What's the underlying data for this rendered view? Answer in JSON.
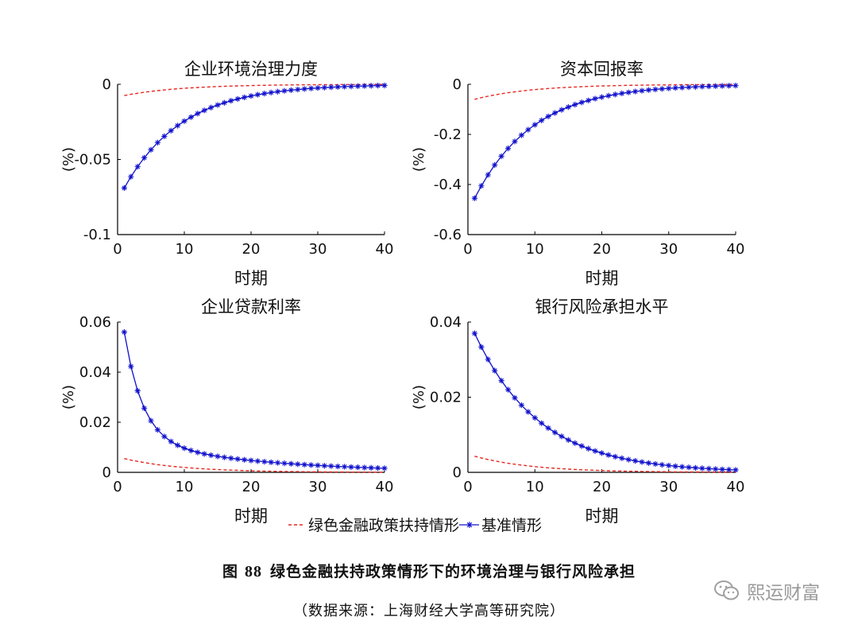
{
  "chart_data": [
    {
      "type": "line",
      "title": "企业环境治理力度",
      "xlabel": "时期",
      "ylabel": "(%)",
      "xlim": [
        0,
        40
      ],
      "ylim": [
        -0.1,
        0
      ],
      "xticks": [
        "0",
        "10",
        "20",
        "30",
        "40"
      ],
      "yticks": [
        "-0.1",
        "-0.05",
        "0"
      ],
      "ytick_values": [
        -0.1,
        -0.05,
        0
      ],
      "series": [
        {
          "name": "绿色金融政策扶持情形",
          "style": "red-dashed",
          "start": -0.0075,
          "decay": 0.115
        },
        {
          "name": "基准情形",
          "style": "blue-star",
          "start": -0.069,
          "decay": 0.115
        }
      ]
    },
    {
      "type": "line",
      "title": "资本回报率",
      "xlabel": "时期",
      "ylabel": "(%)",
      "xlim": [
        0,
        40
      ],
      "ylim": [
        -0.6,
        0
      ],
      "xticks": [
        "0",
        "10",
        "20",
        "30",
        "40"
      ],
      "yticks": [
        "-0.6",
        "-0.4",
        "-0.2",
        "0"
      ],
      "ytick_values": [
        -0.6,
        -0.4,
        -0.2,
        0
      ],
      "series": [
        {
          "name": "绿色金融政策扶持情形",
          "style": "red-dashed",
          "start": -0.06,
          "decay": 0.115
        },
        {
          "name": "基准情形",
          "style": "blue-star",
          "start": -0.455,
          "decay": 0.115
        }
      ]
    },
    {
      "type": "line",
      "title": "企业贷款利率",
      "xlabel": "时期",
      "ylabel": "(%)",
      "xlim": [
        0,
        40
      ],
      "ylim": [
        0,
        0.06
      ],
      "xticks": [
        "0",
        "10",
        "20",
        "30",
        "40"
      ],
      "yticks": [
        "0",
        "0.02",
        "0.04",
        "0.06"
      ],
      "ytick_values": [
        0,
        0.02,
        0.04,
        0.06
      ],
      "series": [
        {
          "name": "绿色金融政策扶持情形",
          "style": "red-dashed",
          "start": 0.0055,
          "decay": 0.115
        },
        {
          "name": "基准情形",
          "style": "blue-star",
          "two_component": true,
          "fast_amp": 0.0432,
          "fast_decay": 0.36,
          "slow_amp": 0.0128,
          "slow_decay": 0.0528
        }
      ]
    },
    {
      "type": "line",
      "title": "银行风险承担水平",
      "xlabel": "时期",
      "ylabel": "(%)",
      "xlim": [
        0,
        40
      ],
      "ylim": [
        0,
        0.04
      ],
      "xticks": [
        "0",
        "10",
        "20",
        "30",
        "40"
      ],
      "yticks": [
        "0",
        "0.02",
        "0.04"
      ],
      "ytick_values": [
        0,
        0.02,
        0.04
      ],
      "series": [
        {
          "name": "绿色金融政策扶持情形",
          "style": "red-dashed",
          "start": 0.0043,
          "decay": 0.115
        },
        {
          "name": "基准情形",
          "style": "blue-star",
          "start": 0.037,
          "decay": 0.104
        }
      ]
    }
  ],
  "legend": {
    "items": [
      {
        "label": "绿色金融政策扶持情形",
        "style": "red-dashed"
      },
      {
        "label": "基准情形",
        "style": "blue-star"
      }
    ]
  },
  "caption": {
    "figure_label": "图",
    "figure_number": "88",
    "title": "绿色金融扶持政策情形下的环境治理与银行风险承担",
    "source": "（数据来源：上海财经大学高等研究院）"
  },
  "watermark": {
    "text": "熙运财富",
    "icon": "wechat-icon"
  },
  "colors": {
    "red": "#e8261f",
    "blue": "#1010cc",
    "axis": "#000000"
  }
}
